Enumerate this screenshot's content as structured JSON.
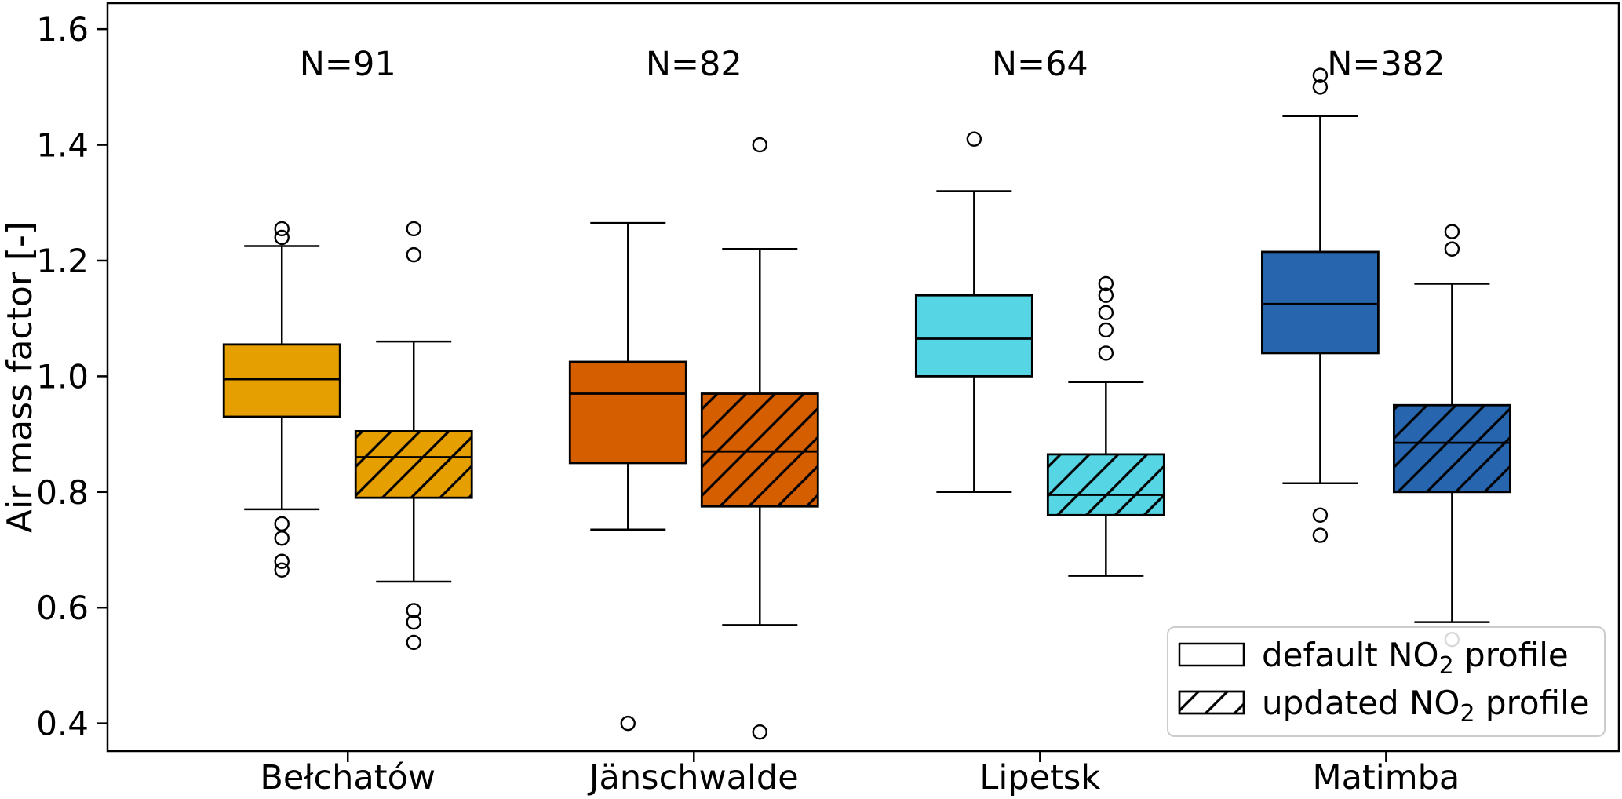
{
  "chart_data": {
    "type": "boxplot",
    "ylabel": "Air mass factor [-]",
    "ylim": [
      0.352,
      1.645
    ],
    "yticks": [
      "0.4",
      "0.6",
      "0.8",
      "1.0",
      "1.2",
      "1.4",
      "1.6"
    ],
    "grid": false,
    "categories": [
      "Bełchatów",
      "Jänschwalde",
      "Lipetsk",
      "Matimba"
    ],
    "counts": [
      "N=91",
      "N=82",
      "N=64",
      "N=382"
    ],
    "colors": [
      "#E69F00",
      "#D55E00",
      "#56D5E5",
      "#2766AE"
    ],
    "series": [
      {
        "name": "default NO₂ profile",
        "hatch": false,
        "boxes": [
          {
            "whislo": 0.77,
            "q1": 0.93,
            "med": 0.995,
            "q3": 1.055,
            "whishi": 1.225,
            "fliers_high": [
              1.24,
              1.255
            ],
            "fliers_low": [
              0.745,
              0.72,
              0.68,
              0.665
            ]
          },
          {
            "whislo": 0.735,
            "q1": 0.85,
            "med": 0.97,
            "q3": 1.025,
            "whishi": 1.265,
            "fliers_high": [],
            "fliers_low": [
              0.4
            ]
          },
          {
            "whislo": 0.8,
            "q1": 1.0,
            "med": 1.065,
            "q3": 1.14,
            "whishi": 1.32,
            "fliers_high": [
              1.41
            ],
            "fliers_low": []
          },
          {
            "whislo": 0.815,
            "q1": 1.04,
            "med": 1.125,
            "q3": 1.215,
            "whishi": 1.45,
            "fliers_high": [
              1.5,
              1.52
            ],
            "fliers_low": [
              0.76,
              0.725
            ]
          }
        ]
      },
      {
        "name": "updated NO₂ profile",
        "hatch": true,
        "boxes": [
          {
            "whislo": 0.645,
            "q1": 0.79,
            "med": 0.86,
            "q3": 0.905,
            "whishi": 1.06,
            "fliers_high": [
              1.21,
              1.255
            ],
            "fliers_low": [
              0.595,
              0.575,
              0.54
            ]
          },
          {
            "whislo": 0.57,
            "q1": 0.775,
            "med": 0.87,
            "q3": 0.97,
            "whishi": 1.22,
            "fliers_high": [
              1.4
            ],
            "fliers_low": [
              0.385
            ]
          },
          {
            "whislo": 0.655,
            "q1": 0.76,
            "med": 0.795,
            "q3": 0.865,
            "whishi": 0.99,
            "fliers_high": [
              1.04,
              1.08,
              1.11,
              1.14,
              1.16
            ],
            "fliers_low": []
          },
          {
            "whislo": 0.575,
            "q1": 0.8,
            "med": 0.885,
            "q3": 0.95,
            "whishi": 1.16,
            "fliers_high": [
              1.22,
              1.25
            ],
            "fliers_low": [
              0.545
            ]
          }
        ]
      }
    ],
    "legend": {
      "position": "lower right",
      "items": [
        {
          "text": "default NO₂ profile",
          "prefix": "default NO",
          "sub": "2",
          "suffix": " profile",
          "hatch": false
        },
        {
          "text": "updated NO₂ profile",
          "prefix": "updated NO",
          "sub": "2",
          "suffix": " profile",
          "hatch": true
        }
      ]
    }
  }
}
